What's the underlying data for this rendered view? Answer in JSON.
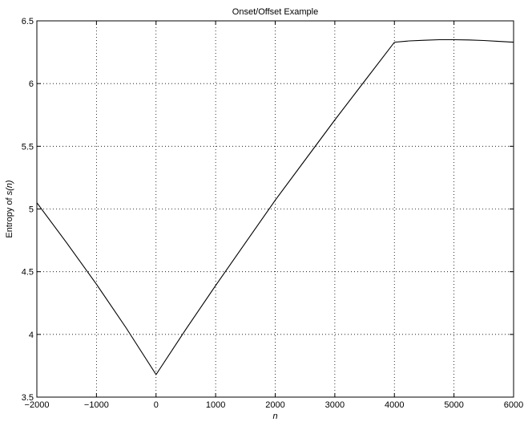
{
  "chart_data": {
    "type": "line",
    "title": "Onset/Offset Example",
    "xlabel": "n",
    "ylabel_prefix": "Entropy of ",
    "ylabel_func": "s(",
    "ylabel_var": "n",
    "ylabel_close": ")",
    "xlim": [
      -2000,
      6000
    ],
    "ylim": [
      3.5,
      6.5
    ],
    "xticks": [
      -2000,
      -1000,
      0,
      1000,
      2000,
      3000,
      4000,
      5000,
      6000
    ],
    "yticks": [
      3.5,
      4,
      4.5,
      5,
      5.5,
      6,
      6.5
    ],
    "xtick_labels": [
      "−2000",
      "−1000",
      "0",
      "1000",
      "2000",
      "3000",
      "4000",
      "5000",
      "6000"
    ],
    "ytick_labels": [
      "3.5",
      "4",
      "4.5",
      "5",
      "5.5",
      "6",
      "6.5"
    ],
    "grid": true,
    "series": [
      {
        "x": [
          -2000,
          -1500,
          -1000,
          -500,
          0,
          500,
          1000,
          1500,
          2000,
          2500,
          3000,
          3500,
          4000,
          4250,
          4500,
          4750,
          5000,
          5250,
          5500,
          5750,
          6000
        ],
        "y": [
          5.05,
          4.73,
          4.4,
          4.05,
          3.68,
          4.04,
          4.39,
          4.73,
          5.07,
          5.39,
          5.71,
          6.02,
          6.33,
          6.34,
          6.345,
          6.35,
          6.35,
          6.348,
          6.343,
          6.336,
          6.33
        ]
      }
    ]
  }
}
